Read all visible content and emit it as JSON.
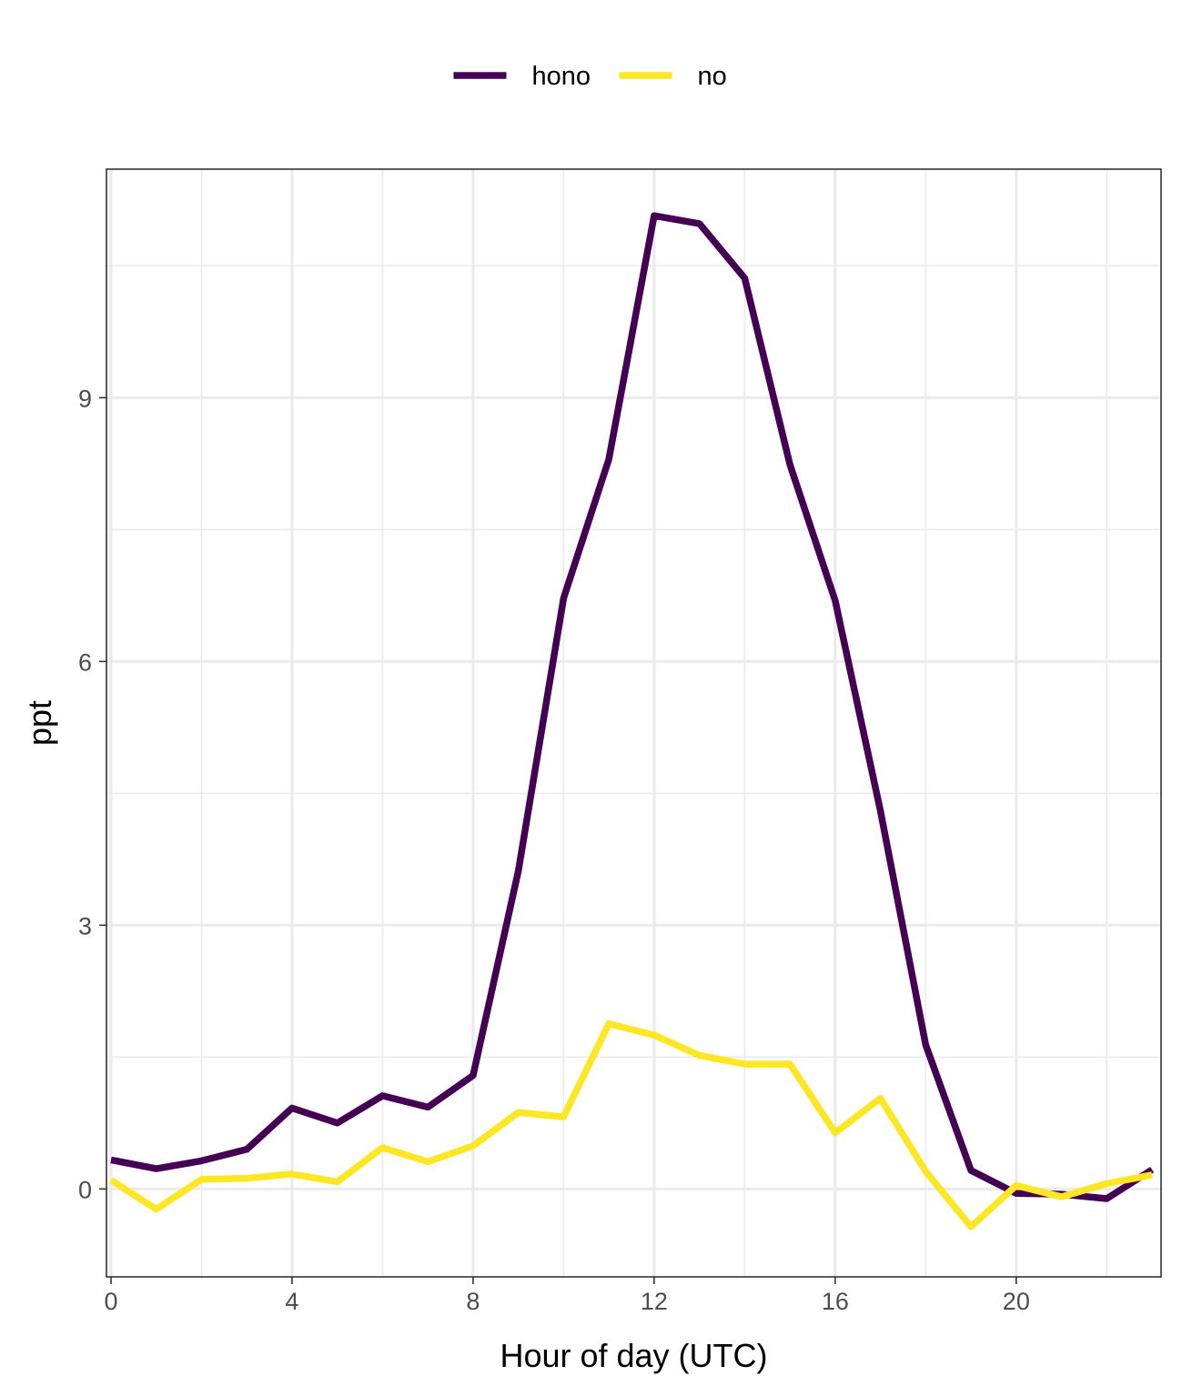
{
  "chart_data": {
    "type": "line",
    "title": "",
    "xlabel": "Hour of day (UTC)",
    "ylabel": "ppt",
    "xlim": [
      -0.1,
      23.2
    ],
    "ylim": [
      -1.0,
      11.6
    ],
    "xticks": [
      0,
      4,
      8,
      12,
      16,
      20
    ],
    "xtick_labels": [
      "0",
      "4",
      "8",
      "12",
      "16",
      "20"
    ],
    "xticks_minor": [
      2,
      6,
      10,
      14,
      18,
      22
    ],
    "yticks": [
      0,
      3,
      6,
      9
    ],
    "ytick_labels": [
      "0",
      "3",
      "6",
      "9"
    ],
    "yticks_minor": [
      1.5,
      4.5,
      7.5,
      10.5
    ],
    "grid": true,
    "legend_position": "top",
    "x": [
      0,
      1,
      2,
      3,
      4,
      5,
      6,
      7,
      8,
      9,
      10,
      11,
      12,
      13,
      14,
      15,
      16,
      17,
      18,
      19,
      20,
      21,
      22,
      23
    ],
    "series": [
      {
        "name": "hono",
        "color": "#440154",
        "values": [
          0.33,
          0.23,
          0.32,
          0.45,
          0.92,
          0.75,
          1.06,
          0.93,
          1.29,
          3.62,
          6.72,
          8.3,
          11.07,
          10.98,
          10.36,
          8.24,
          6.69,
          4.3,
          1.64,
          0.21,
          -0.05,
          -0.06,
          -0.11,
          0.22
        ]
      },
      {
        "name": "no",
        "color": "#FDE725",
        "values": [
          0.1,
          -0.23,
          0.11,
          0.12,
          0.17,
          0.08,
          0.47,
          0.31,
          0.49,
          0.87,
          0.82,
          1.88,
          1.75,
          1.52,
          1.42,
          1.42,
          0.64,
          1.03,
          0.2,
          -0.43,
          0.04,
          -0.09,
          0.06,
          0.16
        ]
      }
    ]
  }
}
